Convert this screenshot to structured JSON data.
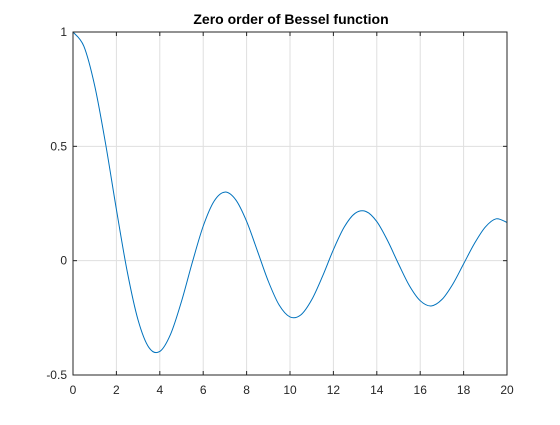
{
  "chart_data": {
    "type": "line",
    "title": "Zero order of Bessel function",
    "xlabel": "",
    "ylabel": "",
    "xlim": [
      0,
      20
    ],
    "ylim": [
      -0.5,
      1
    ],
    "grid": true,
    "xticks": [
      0,
      2,
      4,
      6,
      8,
      10,
      12,
      14,
      16,
      18,
      20
    ],
    "xtick_labels": [
      "0",
      "2",
      "4",
      "6",
      "8",
      "10",
      "12",
      "14",
      "16",
      "18",
      "20"
    ],
    "yticks": [
      -0.5,
      0,
      0.5,
      1
    ],
    "ytick_labels": [
      "-0.5",
      "0",
      "0.5",
      "1"
    ],
    "series": [
      {
        "color": "#0072bd",
        "x": [
          0,
          0.5,
          1,
          1.5,
          2,
          2.5,
          3,
          3.5,
          4,
          4.5,
          5,
          5.5,
          6,
          6.5,
          7,
          7.5,
          8,
          8.5,
          9,
          9.5,
          10,
          10.5,
          11,
          11.5,
          12,
          12.5,
          13,
          13.5,
          14,
          14.5,
          15,
          15.5,
          16,
          16.5,
          17,
          17.5,
          18,
          18.5,
          19,
          19.5,
          20
        ],
        "y": [
          1.0,
          0.938,
          0.765,
          0.512,
          0.224,
          -0.048,
          -0.26,
          -0.38,
          -0.397,
          -0.321,
          -0.178,
          -0.007,
          0.151,
          0.26,
          0.3,
          0.266,
          0.172,
          0.042,
          -0.09,
          -0.194,
          -0.246,
          -0.237,
          -0.171,
          -0.068,
          0.048,
          0.147,
          0.207,
          0.215,
          0.171,
          0.087,
          -0.014,
          -0.109,
          -0.175,
          -0.198,
          -0.17,
          -0.103,
          -0.014,
          0.075,
          0.147,
          0.183,
          0.167
        ]
      }
    ]
  }
}
